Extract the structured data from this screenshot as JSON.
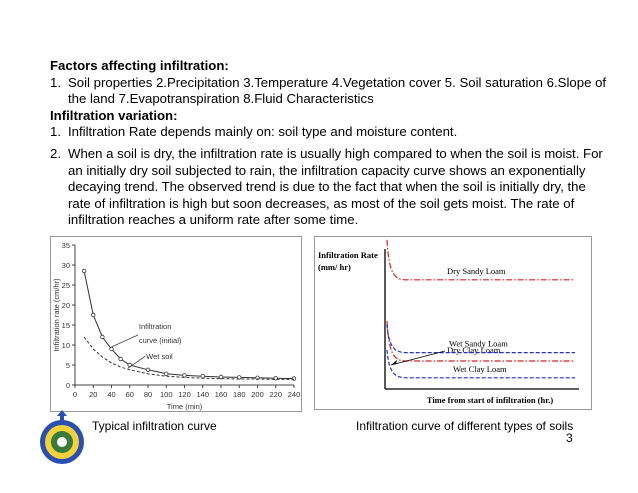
{
  "heading1": "Factors affecting infiltration:",
  "list1": [
    {
      "num": "1.",
      "text": "Soil properties 2.Precipitation 3.Temperature 4.Vegetation cover 5. Soil saturation 6.Slope of the land 7.Evapotranspiration 8.Fluid Characteristics"
    }
  ],
  "heading2": "Infiltration variation:",
  "list2": [
    {
      "num": "1.",
      "text": "Infiltration Rate depends mainly on: soil type and moisture content."
    },
    {
      "num": "2.",
      "text": "When a soil is dry, the infiltration rate is usually high compared to when the soil is moist. For an initially dry soil subjected to rain, the infiltration  capacity curve shows an exponentially decaying trend. The observed trend is due to the fact that when the soil is initially dry, the rate of infiltration is high but soon decreases, as most of the soil gets moist. The rate of infiltration reaches a uniform rate after some time."
    }
  ],
  "caption1": "Typical infiltration curve",
  "caption2": "Infiltration curve of different types of soils",
  "page_number": "3",
  "chart_data": [
    {
      "type": "line",
      "xlabel": "Time (min)",
      "ylabel": "Infiltration rate (cm/hr)",
      "xlim": [
        0,
        240
      ],
      "ylim": [
        0,
        35
      ],
      "xticks": [
        0,
        20,
        40,
        60,
        80,
        100,
        120,
        140,
        160,
        180,
        200,
        220,
        240
      ],
      "yticks": [
        0,
        5,
        10,
        15,
        20,
        25,
        30,
        35
      ],
      "series": [
        {
          "name": "Infiltration curve (initial)",
          "style": "solid",
          "markers": true,
          "x": [
            10,
            20,
            30,
            40,
            50,
            60,
            80,
            100,
            120,
            140,
            160,
            180,
            200,
            220,
            240
          ],
          "values": [
            28.5,
            17.5,
            12,
            9,
            6.5,
            5,
            3.8,
            2.8,
            2.4,
            2.2,
            2.0,
            1.9,
            1.8,
            1.7,
            1.6
          ]
        },
        {
          "name": "Wet soil",
          "style": "dashed",
          "markers": false,
          "x": [
            10,
            20,
            30,
            40,
            50,
            60,
            80,
            100,
            120,
            140,
            160,
            180,
            200,
            220,
            240
          ],
          "values": [
            12,
            9,
            7,
            5.5,
            4.5,
            3.8,
            2.8,
            2.2,
            1.9,
            1.7,
            1.6,
            1.5,
            1.5,
            1.4,
            1.4
          ]
        }
      ],
      "annotations": [
        "Infiltration",
        "curve (initial)",
        "Wet soil"
      ]
    },
    {
      "type": "line",
      "ylabel_lines": [
        "Infiltration Rate",
        "(mm/ hr)"
      ],
      "xlabel": "Time from start of infiltration (hr.)",
      "series": [
        {
          "name": "Dry Sandy Loam",
          "color": "#d62020",
          "style": "dashdot",
          "level": 0.78
        },
        {
          "name": "Dry Clay Loam",
          "color": "#d62020",
          "style": "dashdot",
          "level": 0.2
        },
        {
          "name": "Wet Sandy Loam",
          "color": "#2030c8",
          "style": "dashed",
          "level": 0.26
        },
        {
          "name": "Wet Clay Loam",
          "color": "#2030c8",
          "style": "dashed",
          "level": 0.08
        }
      ]
    }
  ]
}
